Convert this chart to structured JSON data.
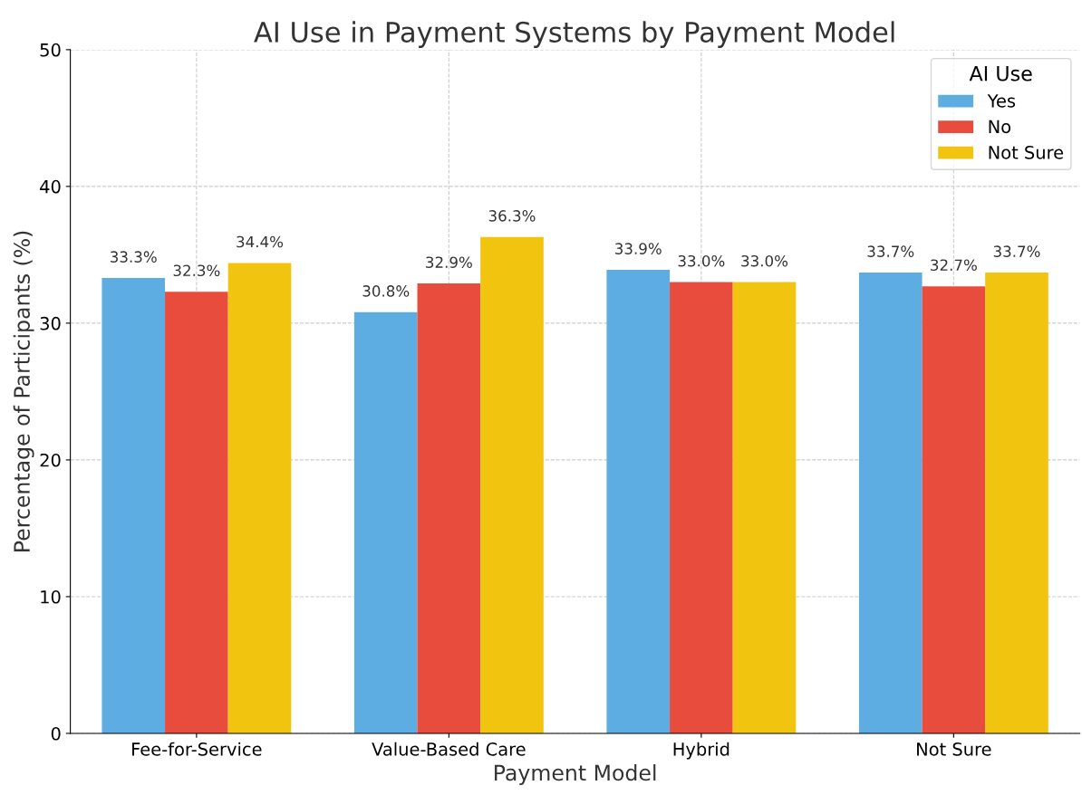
{
  "chart_data": {
    "type": "bar",
    "title": "AI Use in Payment Systems by Payment Model",
    "xlabel": "Payment Model",
    "ylabel": "Percentage of Participants (%)",
    "legend_title": "AI Use",
    "categories": [
      "Fee-for-Service",
      "Value-Based Care",
      "Hybrid",
      "Not Sure"
    ],
    "series": [
      {
        "name": "Yes",
        "color": "#5dade2",
        "values": [
          33.3,
          30.8,
          33.9,
          33.7
        ],
        "value_labels": [
          "33.3%",
          "30.8%",
          "33.9%",
          "33.7%"
        ]
      },
      {
        "name": "No",
        "color": "#e74c3c",
        "values": [
          32.3,
          32.9,
          33.0,
          32.7
        ],
        "value_labels": [
          "32.3%",
          "32.9%",
          "33.0%",
          "32.7%"
        ]
      },
      {
        "name": "Not Sure",
        "color": "#f1c40f",
        "values": [
          34.4,
          36.3,
          33.0,
          33.7
        ],
        "value_labels": [
          "34.4%",
          "36.3%",
          "33.0%",
          "33.7%"
        ]
      }
    ],
    "ylim": [
      0,
      50
    ],
    "yticks": [
      0,
      10,
      20,
      30,
      40,
      50
    ],
    "grid": true,
    "legend": "top right"
  }
}
